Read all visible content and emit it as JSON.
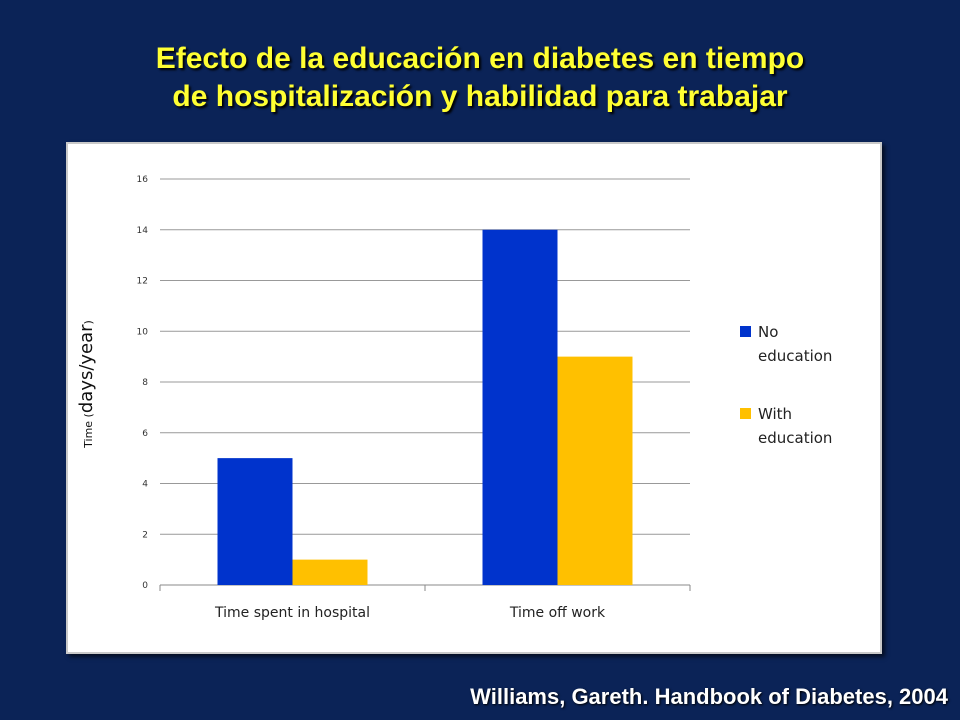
{
  "slide": {
    "title_line1": "Efecto de la educación en diabetes en tiempo",
    "title_line2": "de hospitalización y habilidad para trabajar",
    "credit": "Williams, Gareth. Handbook of Diabetes, 2004"
  },
  "chart_data": {
    "type": "bar",
    "title": "",
    "categories": [
      "Time spent in hospital",
      "Time off work"
    ],
    "series": [
      {
        "name": "No education",
        "values": [
          5,
          14
        ],
        "color": "#0033cc"
      },
      {
        "name": "With education",
        "values": [
          1,
          9
        ],
        "color": "#ffc000"
      }
    ],
    "xlabel": "",
    "ylabel_prefix": "Time (",
    "ylabel_main": "days/year",
    "ylabel_suffix": ")",
    "ylim": [
      0,
      16
    ],
    "yticks": [
      "0",
      "2",
      "4",
      "6",
      "8",
      "10",
      "12",
      "14",
      "16"
    ],
    "grid": true,
    "legend": "right"
  }
}
